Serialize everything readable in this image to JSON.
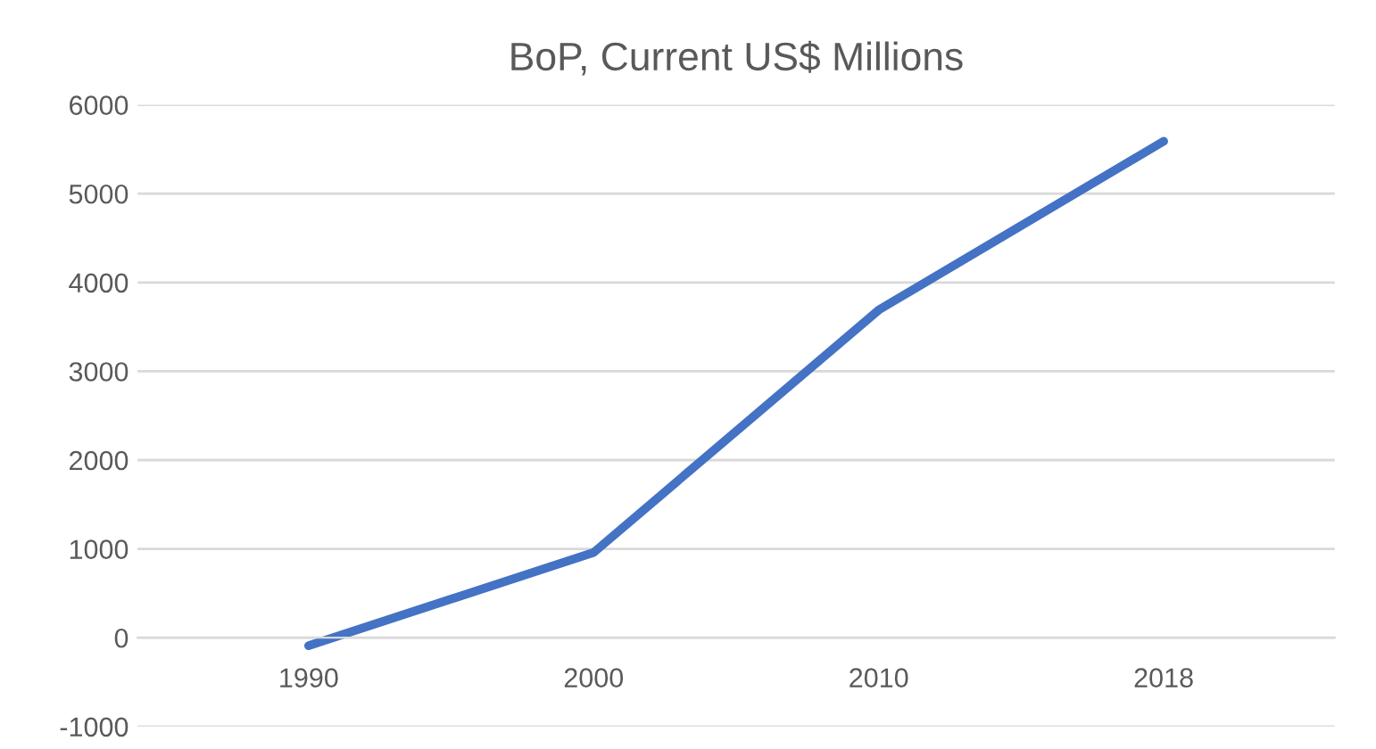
{
  "chart_data": {
    "type": "line",
    "title": "BoP, Current US$ Millions",
    "categories": [
      "1990",
      "2000",
      "2010",
      "2018"
    ],
    "series": [
      {
        "color": "#4472c4",
        "values": [
          -90,
          960,
          3690,
          5590
        ]
      }
    ],
    "ylim": [
      -1000,
      6000
    ],
    "yticks": [
      -1000,
      0,
      1000,
      2000,
      3000,
      4000,
      5000,
      6000
    ],
    "grid": "y",
    "marker": "none",
    "line_style": "solid"
  }
}
